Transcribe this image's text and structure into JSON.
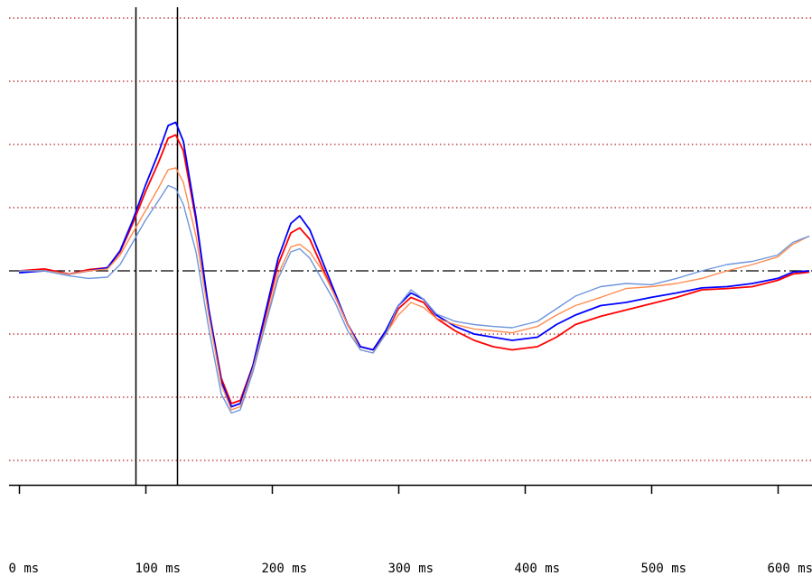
{
  "chart_data": {
    "type": "line",
    "x_unit": "ms",
    "xlim": [
      0,
      625
    ],
    "ylim": [
      -3.4,
      4.2
    ],
    "baseline": 0,
    "grid": "horizontal dotted",
    "cursor_lines_ms": [
      92,
      125
    ],
    "x_tick_labels": [
      "0 ms",
      "100 ms",
      "200 ms",
      "300 ms",
      "400 ms",
      "500 ms",
      "600 ms"
    ],
    "x_ticks": [
      0,
      100,
      200,
      300,
      400,
      500,
      600
    ],
    "colors": {
      "grid": "#b22222",
      "baseline": "#000000",
      "cursor": "#000000"
    },
    "series": [
      {
        "color": "#ff0000",
        "points": [
          [
            0,
            0.0
          ],
          [
            20,
            0.03
          ],
          [
            40,
            -0.05
          ],
          [
            55,
            0.02
          ],
          [
            70,
            0.05
          ],
          [
            80,
            0.3
          ],
          [
            90,
            0.75
          ],
          [
            100,
            1.25
          ],
          [
            110,
            1.7
          ],
          [
            118,
            2.1
          ],
          [
            124,
            2.15
          ],
          [
            130,
            1.9
          ],
          [
            140,
            0.8
          ],
          [
            150,
            -0.6
          ],
          [
            160,
            -1.7
          ],
          [
            168,
            -2.1
          ],
          [
            175,
            -2.05
          ],
          [
            185,
            -1.5
          ],
          [
            195,
            -0.7
          ],
          [
            205,
            0.1
          ],
          [
            215,
            0.6
          ],
          [
            222,
            0.68
          ],
          [
            230,
            0.5
          ],
          [
            240,
            0.05
          ],
          [
            250,
            -0.4
          ],
          [
            260,
            -0.85
          ],
          [
            270,
            -1.2
          ],
          [
            280,
            -1.25
          ],
          [
            290,
            -1.0
          ],
          [
            300,
            -0.6
          ],
          [
            310,
            -0.42
          ],
          [
            320,
            -0.5
          ],
          [
            330,
            -0.75
          ],
          [
            345,
            -0.95
          ],
          [
            360,
            -1.1
          ],
          [
            375,
            -1.2
          ],
          [
            390,
            -1.25
          ],
          [
            410,
            -1.2
          ],
          [
            425,
            -1.05
          ],
          [
            440,
            -0.85
          ],
          [
            460,
            -0.72
          ],
          [
            480,
            -0.62
          ],
          [
            500,
            -0.52
          ],
          [
            520,
            -0.42
          ],
          [
            540,
            -0.3
          ],
          [
            560,
            -0.28
          ],
          [
            580,
            -0.25
          ],
          [
            600,
            -0.15
          ],
          [
            612,
            -0.05
          ],
          [
            625,
            -0.02
          ]
        ]
      },
      {
        "color": "#0000ff",
        "points": [
          [
            0,
            -0.03
          ],
          [
            20,
            0.0
          ],
          [
            40,
            -0.05
          ],
          [
            55,
            0.0
          ],
          [
            70,
            0.05
          ],
          [
            80,
            0.32
          ],
          [
            90,
            0.8
          ],
          [
            100,
            1.35
          ],
          [
            110,
            1.85
          ],
          [
            118,
            2.3
          ],
          [
            124,
            2.35
          ],
          [
            130,
            2.05
          ],
          [
            140,
            0.85
          ],
          [
            150,
            -0.6
          ],
          [
            160,
            -1.75
          ],
          [
            168,
            -2.15
          ],
          [
            175,
            -2.1
          ],
          [
            185,
            -1.5
          ],
          [
            195,
            -0.65
          ],
          [
            205,
            0.2
          ],
          [
            215,
            0.75
          ],
          [
            222,
            0.87
          ],
          [
            230,
            0.65
          ],
          [
            240,
            0.15
          ],
          [
            250,
            -0.35
          ],
          [
            260,
            -0.85
          ],
          [
            270,
            -1.2
          ],
          [
            280,
            -1.25
          ],
          [
            290,
            -0.95
          ],
          [
            300,
            -0.55
          ],
          [
            310,
            -0.35
          ],
          [
            320,
            -0.45
          ],
          [
            330,
            -0.7
          ],
          [
            345,
            -0.88
          ],
          [
            360,
            -1.0
          ],
          [
            375,
            -1.05
          ],
          [
            390,
            -1.1
          ],
          [
            410,
            -1.05
          ],
          [
            425,
            -0.85
          ],
          [
            440,
            -0.7
          ],
          [
            460,
            -0.55
          ],
          [
            480,
            -0.5
          ],
          [
            500,
            -0.42
          ],
          [
            520,
            -0.35
          ],
          [
            540,
            -0.27
          ],
          [
            560,
            -0.25
          ],
          [
            580,
            -0.2
          ],
          [
            600,
            -0.12
          ],
          [
            612,
            -0.02
          ],
          [
            625,
            0.0
          ]
        ]
      },
      {
        "color": "#ff8c50",
        "points": [
          [
            0,
            0.0
          ],
          [
            20,
            0.0
          ],
          [
            40,
            -0.05
          ],
          [
            55,
            0.0
          ],
          [
            70,
            0.03
          ],
          [
            80,
            0.25
          ],
          [
            90,
            0.6
          ],
          [
            100,
            0.95
          ],
          [
            110,
            1.3
          ],
          [
            118,
            1.6
          ],
          [
            124,
            1.63
          ],
          [
            130,
            1.4
          ],
          [
            140,
            0.55
          ],
          [
            150,
            -0.7
          ],
          [
            160,
            -1.8
          ],
          [
            168,
            -2.2
          ],
          [
            175,
            -2.15
          ],
          [
            185,
            -1.55
          ],
          [
            195,
            -0.8
          ],
          [
            205,
            -0.05
          ],
          [
            215,
            0.38
          ],
          [
            222,
            0.42
          ],
          [
            230,
            0.3
          ],
          [
            240,
            0.0
          ],
          [
            250,
            -0.4
          ],
          [
            260,
            -0.85
          ],
          [
            270,
            -1.25
          ],
          [
            280,
            -1.3
          ],
          [
            290,
            -1.0
          ],
          [
            300,
            -0.7
          ],
          [
            310,
            -0.5
          ],
          [
            320,
            -0.58
          ],
          [
            330,
            -0.75
          ],
          [
            345,
            -0.85
          ],
          [
            360,
            -0.92
          ],
          [
            375,
            -0.95
          ],
          [
            390,
            -0.98
          ],
          [
            410,
            -0.88
          ],
          [
            425,
            -0.7
          ],
          [
            440,
            -0.55
          ],
          [
            460,
            -0.42
          ],
          [
            480,
            -0.28
          ],
          [
            500,
            -0.25
          ],
          [
            520,
            -0.2
          ],
          [
            540,
            -0.12
          ],
          [
            560,
            0.0
          ],
          [
            580,
            0.1
          ],
          [
            600,
            0.22
          ],
          [
            612,
            0.42
          ],
          [
            625,
            0.55
          ]
        ]
      },
      {
        "color": "#6e96dc",
        "points": [
          [
            0,
            0.0
          ],
          [
            20,
            0.0
          ],
          [
            40,
            -0.08
          ],
          [
            55,
            -0.12
          ],
          [
            70,
            -0.1
          ],
          [
            80,
            0.1
          ],
          [
            90,
            0.45
          ],
          [
            100,
            0.8
          ],
          [
            110,
            1.1
          ],
          [
            118,
            1.35
          ],
          [
            124,
            1.3
          ],
          [
            130,
            1.05
          ],
          [
            140,
            0.3
          ],
          [
            150,
            -0.9
          ],
          [
            160,
            -1.95
          ],
          [
            168,
            -2.25
          ],
          [
            175,
            -2.2
          ],
          [
            185,
            -1.6
          ],
          [
            195,
            -0.85
          ],
          [
            205,
            -0.12
          ],
          [
            215,
            0.3
          ],
          [
            222,
            0.35
          ],
          [
            230,
            0.2
          ],
          [
            240,
            -0.15
          ],
          [
            250,
            -0.5
          ],
          [
            260,
            -0.95
          ],
          [
            270,
            -1.25
          ],
          [
            280,
            -1.3
          ],
          [
            290,
            -1.0
          ],
          [
            300,
            -0.55
          ],
          [
            310,
            -0.3
          ],
          [
            320,
            -0.45
          ],
          [
            330,
            -0.68
          ],
          [
            345,
            -0.8
          ],
          [
            360,
            -0.85
          ],
          [
            375,
            -0.88
          ],
          [
            390,
            -0.9
          ],
          [
            410,
            -0.8
          ],
          [
            425,
            -0.6
          ],
          [
            440,
            -0.4
          ],
          [
            460,
            -0.25
          ],
          [
            480,
            -0.2
          ],
          [
            500,
            -0.22
          ],
          [
            520,
            -0.12
          ],
          [
            540,
            0.0
          ],
          [
            560,
            0.1
          ],
          [
            580,
            0.15
          ],
          [
            600,
            0.25
          ],
          [
            612,
            0.45
          ],
          [
            625,
            0.55
          ]
        ]
      }
    ]
  }
}
